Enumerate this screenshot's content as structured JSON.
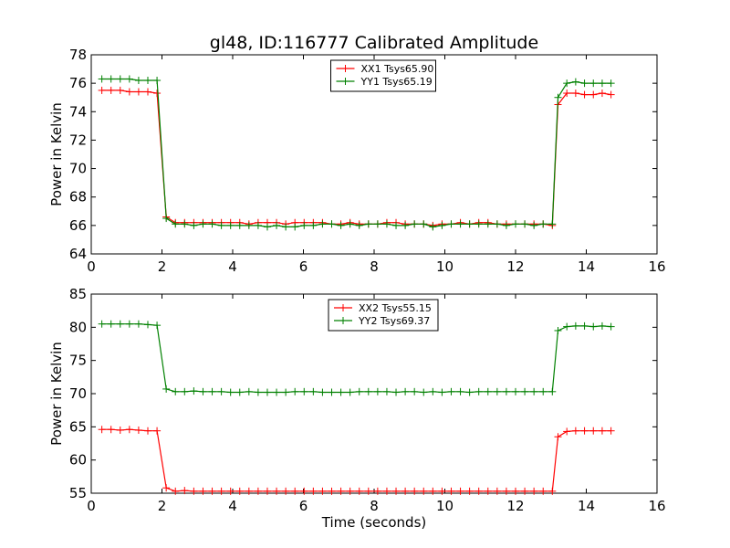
{
  "figure": {
    "title": "gl48, ID:116777 Calibrated Amplitude",
    "xlabel": "Time (seconds)"
  },
  "chart_data": [
    {
      "type": "line",
      "title": "gl48, ID:116777 Calibrated Amplitude",
      "xlabel": "",
      "ylabel": "Power in Kelvin",
      "xlim": [
        0,
        16
      ],
      "ylim": [
        64,
        78
      ],
      "xticks": [
        0,
        2,
        4,
        6,
        8,
        10,
        12,
        14,
        16
      ],
      "yticks": [
        64,
        66,
        68,
        70,
        72,
        74,
        76,
        78
      ],
      "grid": false,
      "legend_position": "top-center",
      "x": [
        0.3,
        0.56,
        0.82,
        1.08,
        1.34,
        1.6,
        1.86,
        2.12,
        2.38,
        2.64,
        2.9,
        3.16,
        3.42,
        3.68,
        3.94,
        4.2,
        4.46,
        4.72,
        4.98,
        5.24,
        5.5,
        5.76,
        6.02,
        6.28,
        6.54,
        6.8,
        7.06,
        7.32,
        7.58,
        7.84,
        8.1,
        8.36,
        8.62,
        8.88,
        9.14,
        9.4,
        9.66,
        9.92,
        10.18,
        10.44,
        10.7,
        10.96,
        11.22,
        11.48,
        11.74,
        12.0,
        12.26,
        12.52,
        12.78,
        13.04,
        13.2,
        13.45,
        13.7,
        13.95,
        14.2,
        14.45,
        14.7
      ],
      "series": [
        {
          "name": "XX1 Tsys65.90",
          "color": "#ff0000",
          "values": [
            75.5,
            75.5,
            75.5,
            75.4,
            75.4,
            75.4,
            75.3,
            66.6,
            66.2,
            66.2,
            66.2,
            66.2,
            66.2,
            66.2,
            66.2,
            66.2,
            66.1,
            66.2,
            66.2,
            66.2,
            66.1,
            66.2,
            66.2,
            66.2,
            66.2,
            66.1,
            66.1,
            66.2,
            66.1,
            66.1,
            66.1,
            66.2,
            66.2,
            66.1,
            66.1,
            66.1,
            66.0,
            66.1,
            66.1,
            66.2,
            66.1,
            66.2,
            66.2,
            66.1,
            66.1,
            66.1,
            66.1,
            66.1,
            66.1,
            66.0,
            74.5,
            75.3,
            75.3,
            75.2,
            75.2,
            75.3,
            75.2
          ]
        },
        {
          "name": "YY1 Tsys65.19",
          "color": "#008000",
          "values": [
            76.3,
            76.3,
            76.3,
            76.3,
            76.2,
            76.2,
            76.2,
            66.5,
            66.1,
            66.1,
            66.0,
            66.1,
            66.1,
            66.0,
            66.0,
            66.0,
            66.0,
            66.0,
            65.9,
            66.0,
            65.9,
            65.9,
            66.0,
            66.0,
            66.1,
            66.1,
            66.0,
            66.1,
            66.0,
            66.1,
            66.1,
            66.1,
            66.0,
            66.0,
            66.1,
            66.1,
            65.9,
            66.0,
            66.1,
            66.1,
            66.1,
            66.1,
            66.1,
            66.1,
            66.0,
            66.1,
            66.1,
            66.0,
            66.1,
            66.1,
            75.0,
            76.0,
            76.1,
            76.0,
            76.0,
            76.0,
            76.0
          ]
        }
      ]
    },
    {
      "type": "line",
      "title": "",
      "xlabel": "Time (seconds)",
      "ylabel": "Power in Kelvin",
      "xlim": [
        0,
        16
      ],
      "ylim": [
        55,
        85
      ],
      "xticks": [
        0,
        2,
        4,
        6,
        8,
        10,
        12,
        14,
        16
      ],
      "yticks": [
        55,
        60,
        65,
        70,
        75,
        80,
        85
      ],
      "grid": false,
      "legend_position": "top-center",
      "x": [
        0.3,
        0.56,
        0.82,
        1.08,
        1.34,
        1.6,
        1.86,
        2.12,
        2.38,
        2.64,
        2.9,
        3.16,
        3.42,
        3.68,
        3.94,
        4.2,
        4.46,
        4.72,
        4.98,
        5.24,
        5.5,
        5.76,
        6.02,
        6.28,
        6.54,
        6.8,
        7.06,
        7.32,
        7.58,
        7.84,
        8.1,
        8.36,
        8.62,
        8.88,
        9.14,
        9.4,
        9.66,
        9.92,
        10.18,
        10.44,
        10.7,
        10.96,
        11.22,
        11.48,
        11.74,
        12.0,
        12.26,
        12.52,
        12.78,
        13.04,
        13.2,
        13.45,
        13.7,
        13.95,
        14.2,
        14.45,
        14.7
      ],
      "series": [
        {
          "name": "XX2 Tsys55.15",
          "color": "#ff0000",
          "values": [
            64.6,
            64.6,
            64.5,
            64.6,
            64.5,
            64.4,
            64.4,
            55.8,
            55.3,
            55.4,
            55.3,
            55.3,
            55.3,
            55.3,
            55.3,
            55.3,
            55.3,
            55.3,
            55.3,
            55.3,
            55.3,
            55.3,
            55.3,
            55.3,
            55.3,
            55.3,
            55.3,
            55.3,
            55.3,
            55.3,
            55.3,
            55.3,
            55.3,
            55.3,
            55.3,
            55.3,
            55.3,
            55.3,
            55.3,
            55.3,
            55.3,
            55.3,
            55.3,
            55.3,
            55.3,
            55.3,
            55.3,
            55.3,
            55.3,
            55.3,
            63.5,
            64.3,
            64.4,
            64.4,
            64.4,
            64.4,
            64.4
          ]
        },
        {
          "name": "YY2 Tsys69.37",
          "color": "#008000",
          "values": [
            80.5,
            80.5,
            80.5,
            80.5,
            80.5,
            80.4,
            80.3,
            70.7,
            70.3,
            70.3,
            70.4,
            70.3,
            70.3,
            70.3,
            70.2,
            70.2,
            70.3,
            70.2,
            70.2,
            70.2,
            70.2,
            70.3,
            70.3,
            70.3,
            70.2,
            70.2,
            70.2,
            70.2,
            70.3,
            70.3,
            70.3,
            70.3,
            70.2,
            70.3,
            70.3,
            70.2,
            70.3,
            70.2,
            70.3,
            70.3,
            70.2,
            70.3,
            70.3,
            70.3,
            70.3,
            70.3,
            70.3,
            70.3,
            70.3,
            70.3,
            79.5,
            80.1,
            80.2,
            80.2,
            80.1,
            80.2,
            80.1
          ]
        }
      ]
    }
  ]
}
